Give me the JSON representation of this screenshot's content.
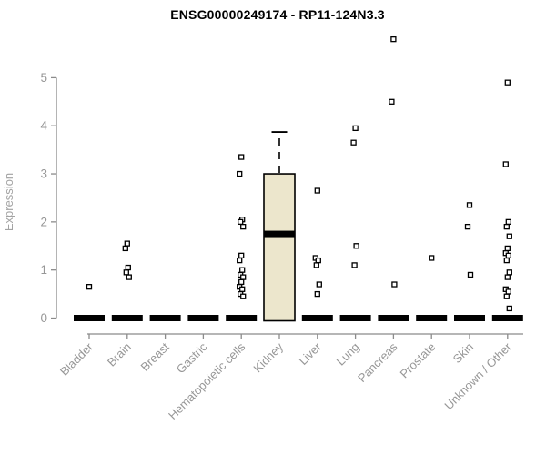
{
  "chart_data": {
    "type": "boxplot",
    "title": "ENSG00000249174 - RP11-124N3.3",
    "ylabel": "Expression",
    "xlabel": "",
    "ylim": [
      0,
      5
    ],
    "yticks": [
      0,
      1,
      2,
      3,
      4,
      5
    ],
    "grid": false,
    "legend": false,
    "colors": {
      "box_fill": "#ECE6CC",
      "box_stroke": "#000000",
      "bar_color": "#000000",
      "axis_line": "#8B8B8B",
      "tick_label": "#979797",
      "axis_label": "#A3A3A3",
      "title": "#000000",
      "point_stroke": "#000000",
      "point_fill": "#FFFFFF",
      "background": "#FFFFFF"
    },
    "categories": [
      "Bladder",
      "Brain",
      "Breast",
      "Gastric",
      "Hematopoietic cells",
      "Kidney",
      "Liver",
      "Lung",
      "Pancreas",
      "Prostate",
      "Skin",
      "Unknown / Other"
    ],
    "series": [
      {
        "category": "Bladder",
        "q1": 0,
        "median": 0,
        "q3": 0,
        "whisker_low": 0,
        "whisker_high": 0,
        "outliers": [
          0.65
        ]
      },
      {
        "category": "Brain",
        "q1": 0,
        "median": 0,
        "q3": 0,
        "whisker_low": 0,
        "whisker_high": 0,
        "outliers": [
          1.55,
          1.45,
          1.05,
          0.95,
          0.85
        ]
      },
      {
        "category": "Breast",
        "q1": 0,
        "median": 0,
        "q3": 0,
        "whisker_low": 0,
        "whisker_high": 0,
        "outliers": []
      },
      {
        "category": "Gastric",
        "q1": 0,
        "median": 0,
        "q3": 0,
        "whisker_low": 0,
        "whisker_high": 0,
        "outliers": []
      },
      {
        "category": "Hematopoietic cells",
        "q1": 0,
        "median": 0,
        "q3": 0,
        "whisker_low": 0,
        "whisker_high": 0,
        "outliers": [
          3.35,
          3.0,
          2.05,
          2.0,
          1.9,
          1.3,
          1.2,
          1.0,
          0.9,
          0.85,
          0.75,
          0.65,
          0.6,
          0.5,
          0.45
        ]
      },
      {
        "category": "Kidney",
        "q1": 0,
        "median": 1.75,
        "q3": 3.0,
        "whisker_low": 0,
        "whisker_high": 3.87,
        "outliers": []
      },
      {
        "category": "Liver",
        "q1": 0,
        "median": 0,
        "q3": 0,
        "whisker_low": 0,
        "whisker_high": 0,
        "outliers": [
          2.65,
          1.25,
          1.2,
          1.1,
          0.7,
          0.5
        ]
      },
      {
        "category": "Lung",
        "q1": 0,
        "median": 0,
        "q3": 0,
        "whisker_low": 0,
        "whisker_high": 0,
        "outliers": [
          3.95,
          3.65,
          1.5,
          1.1
        ]
      },
      {
        "category": "Pancreas",
        "q1": 0,
        "median": 0,
        "q3": 0,
        "whisker_low": 0,
        "whisker_high": 0,
        "outliers": [
          5.8,
          4.5,
          0.7
        ]
      },
      {
        "category": "Prostate",
        "q1": 0,
        "median": 0,
        "q3": 0,
        "whisker_low": 0,
        "whisker_high": 0,
        "outliers": [
          1.25
        ]
      },
      {
        "category": "Skin",
        "q1": 0,
        "median": 0,
        "q3": 0,
        "whisker_low": 0,
        "whisker_high": 0,
        "outliers": [
          2.35,
          1.9,
          0.9
        ]
      },
      {
        "category": "Unknown / Other",
        "q1": 0,
        "median": 0,
        "q3": 0,
        "whisker_low": 0,
        "whisker_high": 0,
        "outliers": [
          4.9,
          3.2,
          2.0,
          1.9,
          1.7,
          1.45,
          1.35,
          1.3,
          1.2,
          0.95,
          0.85,
          0.6,
          0.55,
          0.45,
          0.2
        ]
      }
    ]
  }
}
